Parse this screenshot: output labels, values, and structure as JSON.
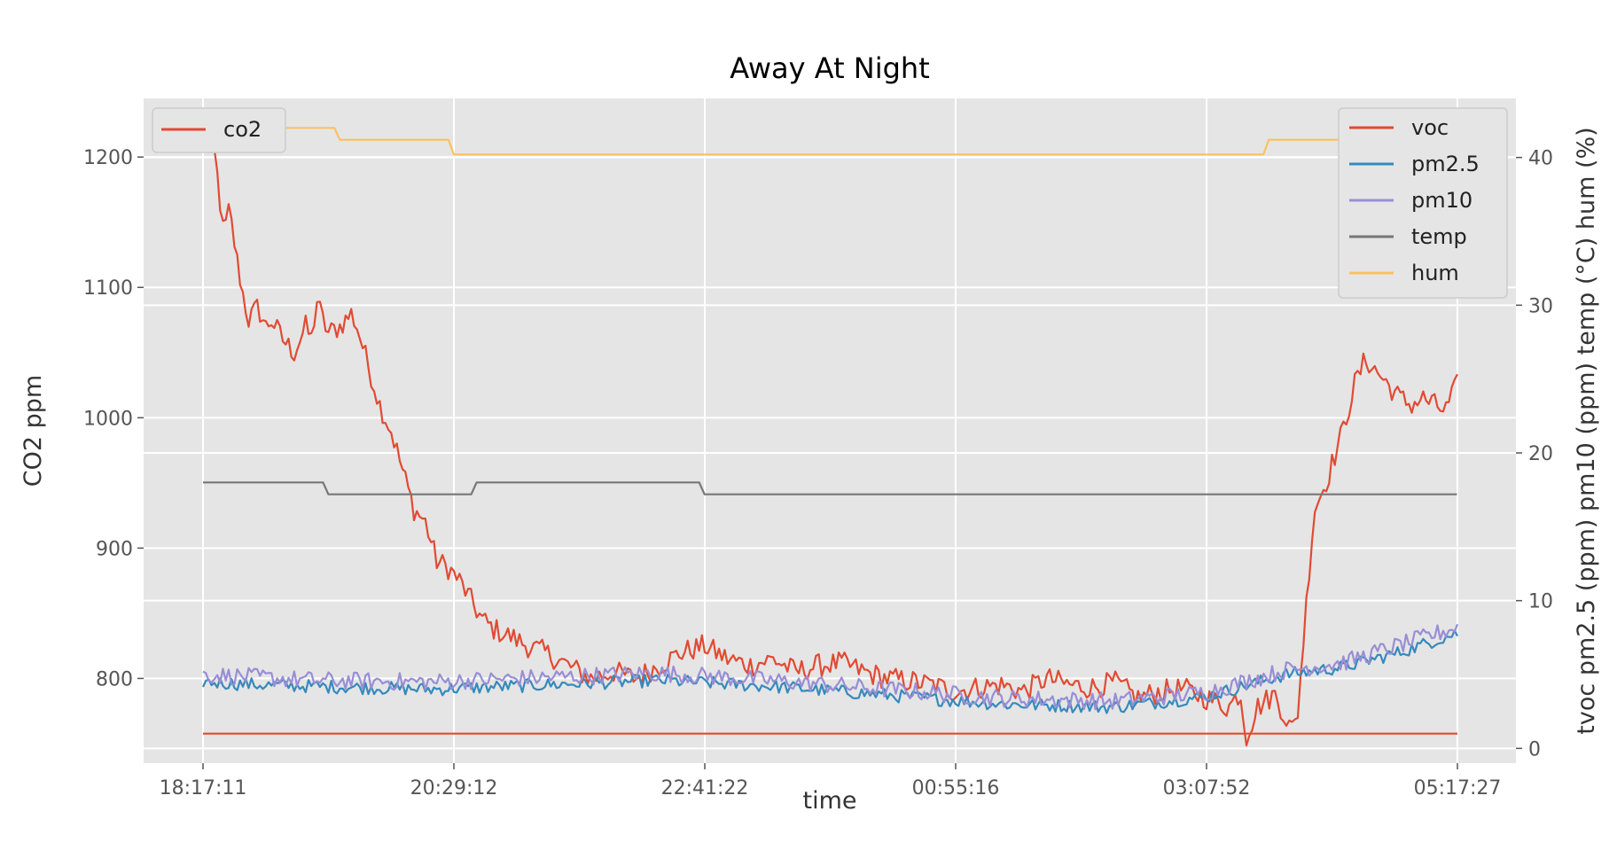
{
  "chart_data": {
    "type": "line",
    "title": "Away At Night",
    "xlabel": "time",
    "ylabel_left": "CO2 ppm",
    "ylabel_right": "tvoc  pm2.5 (ppm)  pm10 (ppm)  temp (°C)  hum (%)",
    "x_ticks": [
      "18:17:11",
      "20:29:12",
      "22:41:22",
      "00:55:16",
      "03:07:52",
      "05:17:27"
    ],
    "y_left_ticks": [
      800,
      900,
      1000,
      1100,
      1200
    ],
    "y_left_lim": [
      735,
      1245
    ],
    "y_right_ticks": [
      0,
      10,
      20,
      30,
      40
    ],
    "y_right_lim": [
      -1,
      44
    ],
    "x_range_hours": [
      0,
      11.005
    ],
    "grid": true,
    "legends": [
      {
        "placement": "top-left",
        "entries": [
          "co2"
        ]
      },
      {
        "placement": "top-right",
        "entries": [
          "voc",
          "pm2.5",
          "pm10",
          "temp",
          "hum"
        ]
      }
    ],
    "series": [
      {
        "name": "co2",
        "axis": "left",
        "color": "#E24A33",
        "anchors": [
          [
            0,
            1205
          ],
          [
            0.05,
            1230
          ],
          [
            0.08,
            1215
          ],
          [
            0.12,
            1190
          ],
          [
            0.18,
            1140
          ],
          [
            0.23,
            1160
          ],
          [
            0.3,
            1120
          ],
          [
            0.35,
            1095
          ],
          [
            0.4,
            1075
          ],
          [
            0.48,
            1085
          ],
          [
            0.55,
            1070
          ],
          [
            0.6,
            1075
          ],
          [
            0.7,
            1060
          ],
          [
            0.8,
            1050
          ],
          [
            0.9,
            1070
          ],
          [
            0.95,
            1060
          ],
          [
            1.0,
            1090
          ],
          [
            1.05,
            1075
          ],
          [
            1.1,
            1065
          ],
          [
            1.2,
            1070
          ],
          [
            1.3,
            1080
          ],
          [
            1.35,
            1070
          ],
          [
            1.45,
            1040
          ],
          [
            1.55,
            1010
          ],
          [
            1.65,
            990
          ],
          [
            1.75,
            960
          ],
          [
            1.85,
            930
          ],
          [
            1.95,
            920
          ],
          [
            2.05,
            890
          ],
          [
            2.15,
            885
          ],
          [
            2.25,
            875
          ],
          [
            2.35,
            860
          ],
          [
            2.45,
            845
          ],
          [
            2.55,
            838
          ],
          [
            2.7,
            832
          ],
          [
            2.85,
            825
          ],
          [
            3.0,
            820
          ],
          [
            3.2,
            810
          ],
          [
            3.4,
            800
          ],
          [
            3.6,
            805
          ],
          [
            3.8,
            800
          ],
          [
            4.0,
            810
          ],
          [
            4.2,
            820
          ],
          [
            4.4,
            825
          ],
          [
            4.6,
            815
          ],
          [
            4.8,
            810
          ],
          [
            5.0,
            815
          ],
          [
            5.2,
            805
          ],
          [
            5.4,
            810
          ],
          [
            5.6,
            812
          ],
          [
            5.8,
            805
          ],
          [
            6.0,
            800
          ],
          [
            6.2,
            798
          ],
          [
            6.4,
            795
          ],
          [
            6.6,
            790
          ],
          [
            6.8,
            793
          ],
          [
            7.0,
            795
          ],
          [
            7.2,
            790
          ],
          [
            7.4,
            800
          ],
          [
            7.6,
            795
          ],
          [
            7.8,
            793
          ],
          [
            8.0,
            797
          ],
          [
            8.2,
            785
          ],
          [
            8.4,
            790
          ],
          [
            8.6,
            792
          ],
          [
            8.8,
            785
          ],
          [
            9.0,
            778
          ],
          [
            9.1,
            790
          ],
          [
            9.15,
            755
          ],
          [
            9.25,
            778
          ],
          [
            9.4,
            788
          ],
          [
            9.5,
            770
          ],
          [
            9.55,
            760
          ],
          [
            9.6,
            770
          ],
          [
            9.7,
            880
          ],
          [
            9.75,
            930
          ],
          [
            9.85,
            950
          ],
          [
            10.0,
            990
          ],
          [
            10.1,
            1025
          ],
          [
            10.2,
            1045
          ],
          [
            10.3,
            1035
          ],
          [
            10.4,
            1025
          ],
          [
            10.5,
            1015
          ],
          [
            10.6,
            1010
          ],
          [
            10.7,
            1015
          ],
          [
            10.8,
            1010
          ],
          [
            10.9,
            1005
          ],
          [
            11.0,
            1025
          ]
        ],
        "noise": 9
      },
      {
        "name": "voc",
        "axis": "right",
        "color": "#E24A33",
        "anchors": [
          [
            0,
            1.0
          ],
          [
            11.0,
            1.0
          ]
        ],
        "noise": 0
      },
      {
        "name": "pm2.5",
        "axis": "right",
        "color": "#348ABD",
        "anchors": [
          [
            0,
            4.5
          ],
          [
            0.5,
            4.3
          ],
          [
            1.0,
            4.2
          ],
          [
            2.0,
            4.0
          ],
          [
            3.0,
            4.3
          ],
          [
            4.0,
            4.6
          ],
          [
            5.0,
            4.2
          ],
          [
            6.0,
            3.6
          ],
          [
            7.0,
            3.0
          ],
          [
            8.0,
            2.8
          ],
          [
            8.8,
            3.5
          ],
          [
            9.5,
            5.0
          ],
          [
            10.0,
            5.5
          ],
          [
            10.5,
            6.5
          ],
          [
            11.0,
            7.8
          ]
        ],
        "noise": 0.45
      },
      {
        "name": "pm10",
        "axis": "right",
        "color": "#988ED5",
        "anchors": [
          [
            0,
            5.0
          ],
          [
            0.5,
            4.8
          ],
          [
            1.0,
            4.6
          ],
          [
            2.0,
            4.5
          ],
          [
            3.0,
            4.8
          ],
          [
            4.0,
            5.1
          ],
          [
            5.0,
            4.6
          ],
          [
            6.0,
            4.0
          ],
          [
            7.0,
            3.4
          ],
          [
            8.0,
            3.2
          ],
          [
            8.8,
            3.8
          ],
          [
            9.5,
            5.3
          ],
          [
            10.0,
            5.8
          ],
          [
            10.5,
            7.0
          ],
          [
            11.0,
            8.2
          ]
        ],
        "noise": 0.6
      },
      {
        "name": "temp",
        "axis": "right",
        "color": "#777777",
        "steps": [
          [
            0,
            18.0
          ],
          [
            1.1,
            17.2
          ],
          [
            2.4,
            18.0
          ],
          [
            4.4,
            17.2
          ],
          [
            11.0,
            17.2
          ]
        ]
      },
      {
        "name": "hum",
        "axis": "right",
        "color": "#FBC15E",
        "steps": [
          [
            0,
            42.0
          ],
          [
            1.2,
            41.2
          ],
          [
            2.2,
            40.2
          ],
          [
            9.35,
            41.2
          ],
          [
            11.0,
            41.2
          ]
        ]
      }
    ]
  }
}
